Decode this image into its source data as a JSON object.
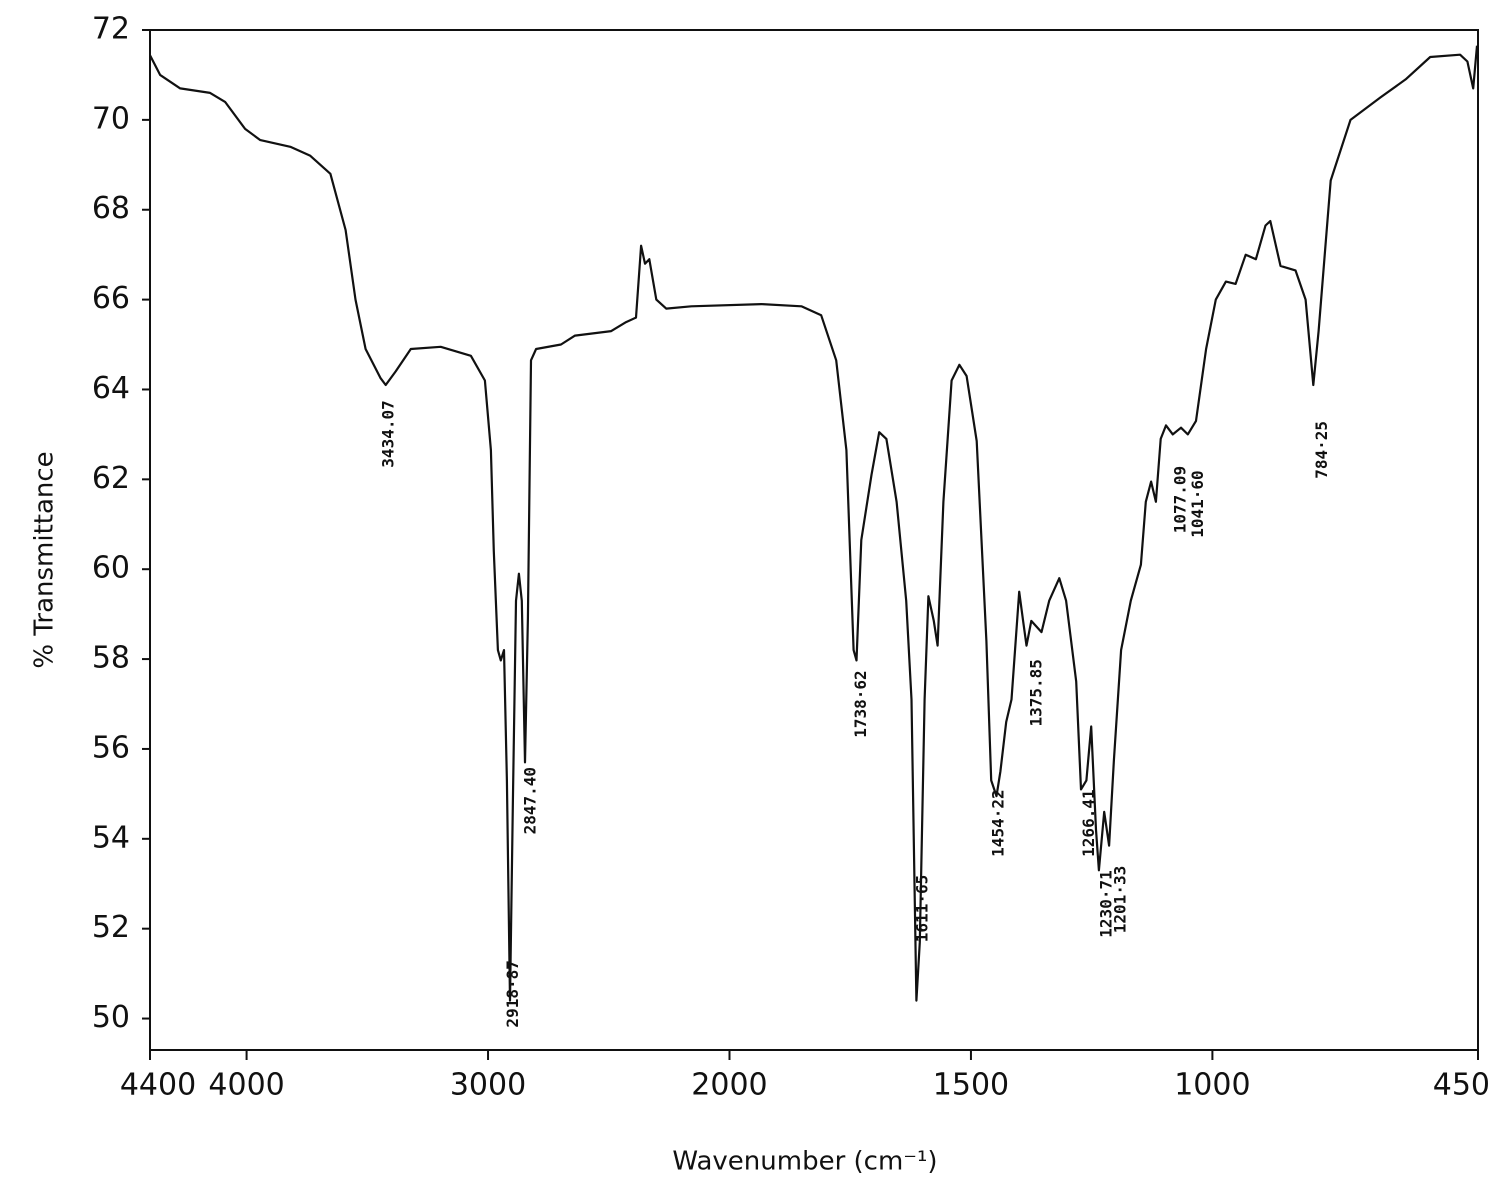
{
  "chart_data": {
    "type": "line",
    "xlabel": "Wavenumber (cm⁻¹)",
    "ylabel": "% Transmittance",
    "color": "#111111",
    "xlim": [
      4400,
      450
    ],
    "ylim": [
      49.3,
      72
    ],
    "x_scale_break": 2000,
    "x_scale_expansion": 2,
    "xticks": [
      4400,
      4000,
      3000,
      2000,
      1500,
      1000,
      450
    ],
    "yticks": [
      50,
      52,
      54,
      56,
      58,
      60,
      62,
      64,
      66,
      68,
      70,
      72
    ],
    "x": [
      4400,
      4358,
      4275,
      4151,
      4089,
      4006,
      3943,
      3819,
      3736,
      3653,
      3590,
      3549,
      3507,
      3445,
      3424,
      3383,
      3320,
      3196,
      3071,
      3013,
      2988,
      2976,
      2959,
      2947,
      2934,
      2922,
      2909,
      2897,
      2884,
      2872,
      2860,
      2847,
      2835,
      2822,
      2801,
      2698,
      2640,
      2490,
      2428,
      2387,
      2366,
      2350,
      2332,
      2303,
      2262,
      2158,
      1934,
      1851,
      1810,
      1779,
      1758,
      1743,
      1737,
      1727,
      1706,
      1690,
      1675,
      1654,
      1634,
      1623,
      1613,
      1606,
      1596,
      1588,
      1577,
      1569,
      1557,
      1540,
      1524,
      1509,
      1488,
      1468,
      1458,
      1447,
      1439,
      1427,
      1416,
      1400,
      1392,
      1385,
      1375,
      1354,
      1338,
      1317,
      1303,
      1282,
      1272,
      1261,
      1251,
      1241,
      1235,
      1224,
      1214,
      1204,
      1189,
      1169,
      1148,
      1138,
      1127,
      1117,
      1107,
      1096,
      1082,
      1065,
      1051,
      1034,
      1013,
      993,
      972,
      952,
      931,
      910,
      890,
      880,
      859,
      828,
      807,
      791,
      780,
      755,
      714,
      652,
      600,
      549,
      487,
      472,
      460,
      452
    ],
    "values": [
      71.44,
      71.0,
      70.7,
      70.6,
      70.4,
      69.8,
      69.55,
      69.4,
      69.2,
      68.8,
      67.55,
      66.0,
      64.9,
      64.25,
      64.1,
      64.4,
      64.9,
      64.95,
      64.75,
      64.2,
      62.65,
      60.4,
      58.2,
      57.97,
      58.2,
      55.3,
      50.4,
      54.85,
      59.3,
      59.9,
      59.3,
      55.7,
      58.9,
      64.65,
      64.9,
      65.0,
      65.2,
      65.3,
      65.5,
      65.6,
      67.2,
      66.8,
      66.9,
      66.0,
      65.8,
      65.85,
      65.9,
      65.85,
      65.65,
      64.65,
      62.65,
      58.2,
      57.97,
      60.65,
      62.1,
      63.05,
      62.9,
      61.5,
      59.3,
      57.1,
      50.4,
      51.7,
      57.1,
      59.4,
      58.85,
      58.3,
      61.5,
      64.2,
      64.55,
      64.3,
      62.85,
      58.4,
      55.3,
      54.95,
      55.5,
      56.6,
      57.1,
      59.5,
      58.85,
      58.3,
      58.85,
      58.6,
      59.3,
      59.8,
      59.3,
      57.5,
      55.1,
      55.3,
      56.5,
      54.2,
      53.3,
      54.6,
      53.85,
      55.75,
      58.2,
      59.3,
      60.1,
      61.5,
      61.95,
      61.5,
      62.9,
      63.2,
      63.0,
      63.15,
      63.0,
      63.3,
      64.9,
      66.0,
      66.4,
      66.35,
      67.0,
      66.9,
      67.65,
      67.75,
      66.75,
      66.65,
      66.0,
      64.1,
      65.3,
      68.65,
      70.0,
      70.5,
      70.9,
      71.4,
      71.45,
      71.3,
      70.7,
      71.65
    ],
    "annotations": [
      {
        "x": 3434.07,
        "y": 63.76,
        "label": "3434.07"
      },
      {
        "x": 2918.87,
        "y": 51.3,
        "label": "2918·87"
      },
      {
        "x": 2847.4,
        "y": 55.6,
        "label": "2847.40"
      },
      {
        "x": 1738.62,
        "y": 57.75,
        "label": "1738·62"
      },
      {
        "x": 1611.65,
        "y": 53.2,
        "label": "1611·65"
      },
      {
        "x": 1454.22,
        "y": 55.1,
        "label": "1454·22"
      },
      {
        "x": 1375.85,
        "y": 58.0,
        "label": "1375.85"
      },
      {
        "x": 1266.41,
        "y": 55.1,
        "label": "1266.41"
      },
      {
        "x": 1230.71,
        "y": 53.3,
        "label": "1230·71"
      },
      {
        "x": 1201.33,
        "y": 53.4,
        "label": "1201·33"
      },
      {
        "x": 1077.09,
        "y": 62.3,
        "label": "1077.09"
      },
      {
        "x": 1041.6,
        "y": 62.2,
        "label": "1041·60"
      },
      {
        "x": 784.25,
        "y": 63.3,
        "label": "784·25"
      }
    ]
  }
}
